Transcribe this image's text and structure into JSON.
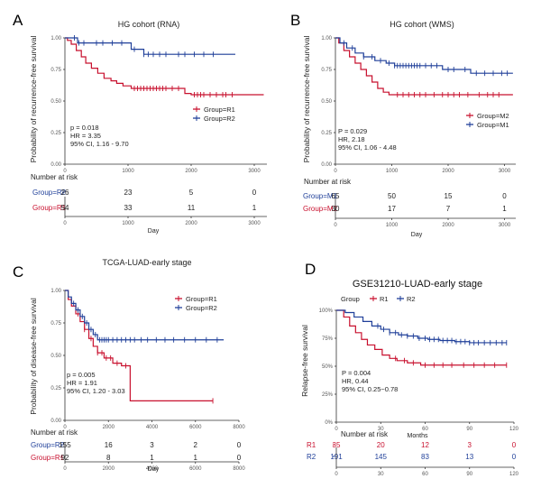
{
  "colors": {
    "red": "#c8102e",
    "blue": "#1f3f99",
    "gray": "#555555"
  },
  "chart_data": [
    {
      "type": "line",
      "panel_label": "A",
      "title": "HG cohort (RNA)",
      "xlabel": "Day",
      "ylabel": "Probability of recurrence-free survival",
      "xlim": [
        0,
        3200
      ],
      "ylim": [
        0,
        1
      ],
      "x_ticks": [
        "0",
        "1000",
        "2000",
        "3000"
      ],
      "y_ticks": [
        "0.00",
        "0.25",
        "0.50",
        "0.75",
        "1.00"
      ],
      "legend": [
        "Group=R1",
        "Group=R2"
      ],
      "stats": [
        "p = 0.018",
        "HR = 3.35",
        "95% CI, 1.16 - 9.70"
      ],
      "series": [
        {
          "name": "Group=R1",
          "color": "red",
          "steps": [
            [
              0,
              1.0
            ],
            [
              40,
              0.98
            ],
            [
              100,
              0.95
            ],
            [
              180,
              0.9
            ],
            [
              260,
              0.85
            ],
            [
              330,
              0.8
            ],
            [
              420,
              0.76
            ],
            [
              520,
              0.72
            ],
            [
              620,
              0.68
            ],
            [
              730,
              0.66
            ],
            [
              820,
              0.64
            ],
            [
              920,
              0.62
            ],
            [
              1050,
              0.6
            ],
            [
              1900,
              0.56
            ],
            [
              2000,
              0.55
            ],
            [
              3150,
              0.55
            ]
          ],
          "censors": [
            1100,
            1150,
            1200,
            1250,
            1300,
            1350,
            1400,
            1450,
            1500,
            1550,
            1600,
            1700,
            1800,
            2050,
            2100,
            2150,
            2200,
            2300,
            2400,
            2500,
            2550,
            2650
          ]
        },
        {
          "name": "Group=R2",
          "color": "blue",
          "steps": [
            [
              0,
              1.0
            ],
            [
              200,
              0.96
            ],
            [
              1050,
              0.91
            ],
            [
              1250,
              0.87
            ],
            [
              2700,
              0.87
            ]
          ],
          "censors": [
            150,
            220,
            300,
            500,
            600,
            750,
            900,
            1100,
            1250,
            1320,
            1400,
            1500,
            1600,
            1800,
            1900,
            2050,
            2200,
            2350
          ]
        }
      ],
      "risk_table": {
        "title": "Number at risk",
        "rows": [
          {
            "label": "Group=R2",
            "color": "blue",
            "values": [
              "26",
              "23",
              "5",
              "0"
            ]
          },
          {
            "label": "Group=R1",
            "color": "red",
            "values": [
              "54",
              "33",
              "11",
              "1"
            ]
          }
        ]
      }
    },
    {
      "type": "line",
      "panel_label": "B",
      "title": "HG cohort (WMS)",
      "xlabel": "Day",
      "ylabel": "Probability of recurrence-free survival",
      "xlim": [
        0,
        3200
      ],
      "ylim": [
        0,
        1
      ],
      "x_ticks": [
        "0",
        "1000",
        "2000",
        "3000"
      ],
      "y_ticks": [
        "0.00",
        "0.25",
        "0.50",
        "0.75",
        "1.00"
      ],
      "legend": [
        "Group=M2",
        "Group=M1"
      ],
      "stats": [
        "P = 0.029",
        "HR, 2.18",
        "95% CI, 1.06 - 4.48"
      ],
      "series": [
        {
          "name": "Group=M2",
          "color": "red",
          "steps": [
            [
              0,
              1.0
            ],
            [
              60,
              0.96
            ],
            [
              150,
              0.9
            ],
            [
              250,
              0.85
            ],
            [
              350,
              0.8
            ],
            [
              450,
              0.75
            ],
            [
              550,
              0.7
            ],
            [
              650,
              0.65
            ],
            [
              750,
              0.6
            ],
            [
              850,
              0.57
            ],
            [
              950,
              0.55
            ],
            [
              3150,
              0.55
            ]
          ],
          "censors": [
            1100,
            1200,
            1300,
            1400,
            1500,
            1600,
            1750,
            1900,
            2000,
            2100,
            2200,
            2350,
            2550,
            2700,
            2800,
            2900
          ]
        },
        {
          "name": "Group=M1",
          "color": "blue",
          "steps": [
            [
              0,
              1.0
            ],
            [
              80,
              0.96
            ],
            [
              200,
              0.92
            ],
            [
              350,
              0.88
            ],
            [
              500,
              0.85
            ],
            [
              700,
              0.82
            ],
            [
              900,
              0.8
            ],
            [
              1050,
              0.78
            ],
            [
              1900,
              0.75
            ],
            [
              2400,
              0.72
            ],
            [
              3150,
              0.72
            ]
          ],
          "censors": [
            150,
            300,
            500,
            650,
            800,
            950,
            1050,
            1100,
            1150,
            1200,
            1250,
            1300,
            1350,
            1400,
            1450,
            1500,
            1600,
            1700,
            1800,
            2000,
            2100,
            2300,
            2500,
            2650,
            2800,
            2950,
            3050
          ]
        }
      ],
      "risk_table": {
        "title": "Number at risk",
        "rows": [
          {
            "label": "Group=M1",
            "color": "blue",
            "values": [
              "65",
              "50",
              "15",
              "0"
            ]
          },
          {
            "label": "Group=M2",
            "color": "red",
            "values": [
              "30",
              "17",
              "7",
              "1"
            ]
          }
        ]
      }
    },
    {
      "type": "line",
      "panel_label": "C",
      "title": "TCGA-LUAD-early stage",
      "xlabel": "Day",
      "ylabel": "Probability of disease-free survival",
      "xlim": [
        0,
        8000
      ],
      "ylim": [
        0,
        1
      ],
      "x_ticks": [
        "0",
        "2000",
        "4000",
        "6000",
        "8000"
      ],
      "y_ticks": [
        "0.00",
        "0.25",
        "0.50",
        "0.75",
        "1.00"
      ],
      "legend": [
        "Group=R1",
        "Group=R2"
      ],
      "stats": [
        "p = 0.005",
        "HR = 1.91",
        "95% CI, 1.20 - 3.03"
      ],
      "series": [
        {
          "name": "Group=R1",
          "color": "red",
          "steps": [
            [
              0,
              1.0
            ],
            [
              150,
              0.93
            ],
            [
              300,
              0.88
            ],
            [
              500,
              0.82
            ],
            [
              700,
              0.76
            ],
            [
              900,
              0.7
            ],
            [
              1100,
              0.63
            ],
            [
              1300,
              0.57
            ],
            [
              1500,
              0.52
            ],
            [
              1800,
              0.48
            ],
            [
              2200,
              0.44
            ],
            [
              2600,
              0.42
            ],
            [
              3000,
              0.15
            ],
            [
              6800,
              0.15
            ]
          ],
          "censors": [
            600,
            900,
            1200,
            1500,
            1700,
            1900,
            2100,
            2400,
            2800,
            6800
          ]
        },
        {
          "name": "Group=R2",
          "color": "blue",
          "steps": [
            [
              0,
              1.0
            ],
            [
              150,
              0.95
            ],
            [
              300,
              0.9
            ],
            [
              500,
              0.85
            ],
            [
              700,
              0.8
            ],
            [
              900,
              0.75
            ],
            [
              1100,
              0.7
            ],
            [
              1300,
              0.66
            ],
            [
              1500,
              0.62
            ],
            [
              7300,
              0.62
            ]
          ],
          "censors": [
            400,
            600,
            800,
            1000,
            1200,
            1400,
            1600,
            1700,
            1800,
            1900,
            2000,
            2200,
            2400,
            2600,
            2800,
            3000,
            3200,
            3500,
            3800,
            4200,
            4600,
            5000,
            5500,
            6000,
            6500,
            7000
          ]
        }
      ],
      "risk_table": {
        "title": "Number at risk",
        "rows": [
          {
            "label": "Group=R2",
            "color": "blue",
            "values": [
              "155",
              "16",
              "3",
              "2",
              "0"
            ]
          },
          {
            "label": "Group=R1",
            "color": "red",
            "values": [
              "92",
              "8",
              "1",
              "1",
              "0"
            ]
          }
        ]
      }
    },
    {
      "type": "line",
      "panel_label": "D",
      "title": "GSE31210-LUAD-early stage",
      "xlabel": "Months",
      "ylabel": "Relapse-free survival",
      "xlim": [
        0,
        120
      ],
      "ylim": [
        0,
        1
      ],
      "x_ticks": [
        "0",
        "30",
        "60",
        "90",
        "120"
      ],
      "y_ticks": [
        "0%",
        "25%",
        "50%",
        "75%",
        "100%"
      ],
      "legend_title": "Group",
      "legend": [
        "R1",
        "R2"
      ],
      "stats": [
        "P = 0.004",
        "HR, 0.44",
        "95% CI, 0.25~0.78"
      ],
      "series": [
        {
          "name": "R1",
          "color": "red",
          "steps": [
            [
              0,
              1.0
            ],
            [
              5,
              0.94
            ],
            [
              9,
              0.86
            ],
            [
              13,
              0.8
            ],
            [
              17,
              0.74
            ],
            [
              21,
              0.69
            ],
            [
              26,
              0.65
            ],
            [
              31,
              0.6
            ],
            [
              36,
              0.57
            ],
            [
              41,
              0.55
            ],
            [
              48,
              0.53
            ],
            [
              57,
              0.51
            ],
            [
              115,
              0.51
            ]
          ],
          "censors": [
            40,
            46,
            52,
            60,
            66,
            72,
            78,
            86,
            93,
            100,
            107,
            115
          ]
        },
        {
          "name": "R2",
          "color": "blue",
          "steps": [
            [
              0,
              1.0
            ],
            [
              6,
              0.98
            ],
            [
              12,
              0.94
            ],
            [
              18,
              0.9
            ],
            [
              24,
              0.86
            ],
            [
              30,
              0.83
            ],
            [
              36,
              0.8
            ],
            [
              42,
              0.78
            ],
            [
              48,
              0.77
            ],
            [
              55,
              0.75
            ],
            [
              62,
              0.74
            ],
            [
              70,
              0.73
            ],
            [
              80,
              0.72
            ],
            [
              90,
              0.71
            ],
            [
              115,
              0.71
            ]
          ],
          "censors": [
            28,
            32,
            36,
            40,
            44,
            48,
            52,
            56,
            60,
            63,
            66,
            69,
            72,
            75,
            78,
            81,
            84,
            87,
            90,
            93,
            96,
            100,
            104,
            108,
            112,
            115
          ]
        }
      ],
      "risk_table": {
        "title": "Number at risk",
        "rows": [
          {
            "label": "R1",
            "color": "red",
            "values": [
              "35",
              "20",
              "12",
              "3",
              "0"
            ]
          },
          {
            "label": "R2",
            "color": "blue",
            "values": [
              "191",
              "145",
              "83",
              "13",
              "0"
            ]
          }
        ]
      }
    }
  ]
}
